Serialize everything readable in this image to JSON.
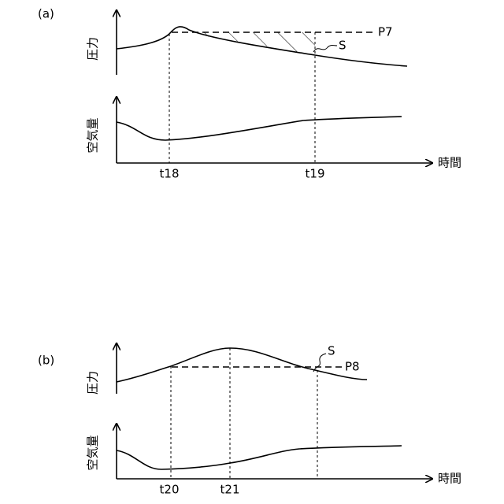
{
  "panels": [
    {
      "label": "(a)",
      "y_labels": [
        "圧力",
        "空気量"
      ],
      "x_label": "時間",
      "threshold": "P7",
      "area": "S",
      "times": [
        "t18",
        "t19"
      ]
    },
    {
      "label": "(b)",
      "y_labels": [
        "圧力",
        "空気量"
      ],
      "x_label": "時間",
      "threshold": "P8",
      "area": "S",
      "times": [
        "t20",
        "t21"
      ]
    }
  ]
}
